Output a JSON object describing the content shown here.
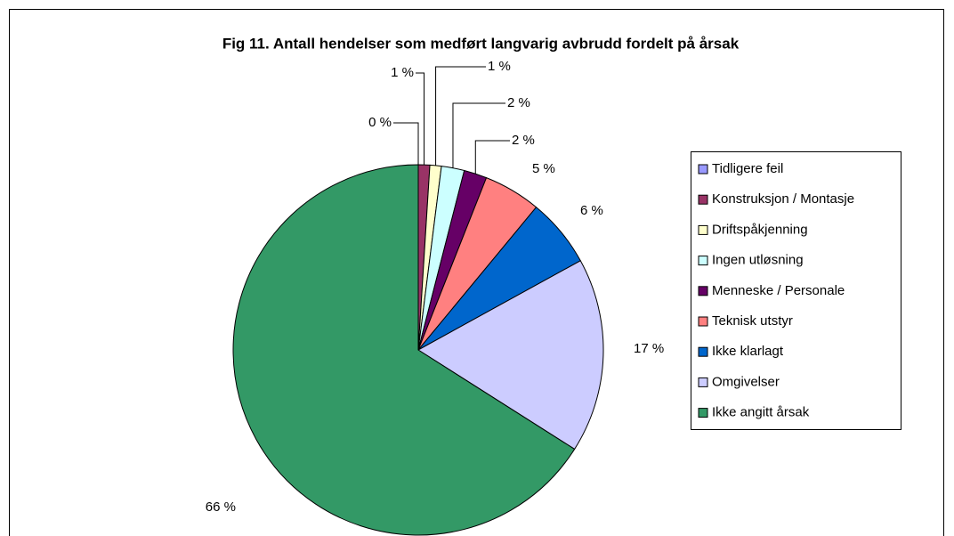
{
  "chart_data": {
    "type": "pie",
    "title": "Fig 11. Antall hendelser som medført langvarig avbrudd fordelt på årsak",
    "categories": [
      "Tidligere feil",
      "Konstruksjon / Montasje",
      "Driftspåkjenning",
      "Ingen utløsning",
      "Menneske / Personale",
      "Teknisk utstyr",
      "Ikke klarlagt",
      "Omgivelser",
      "Ikke angitt årsak"
    ],
    "values": [
      0,
      1,
      1,
      2,
      2,
      5,
      6,
      17,
      66
    ],
    "value_labels": [
      "0 %",
      "1 %",
      "1 %",
      "2 %",
      "2 %",
      "5 %",
      "6 %",
      "17 %",
      "66 %"
    ],
    "colors": [
      "#9999ff",
      "#993366",
      "#ffffcc",
      "#ccffff",
      "#660066",
      "#ff8080",
      "#0066cc",
      "#ccccff",
      "#339966"
    ],
    "legend": "right"
  }
}
